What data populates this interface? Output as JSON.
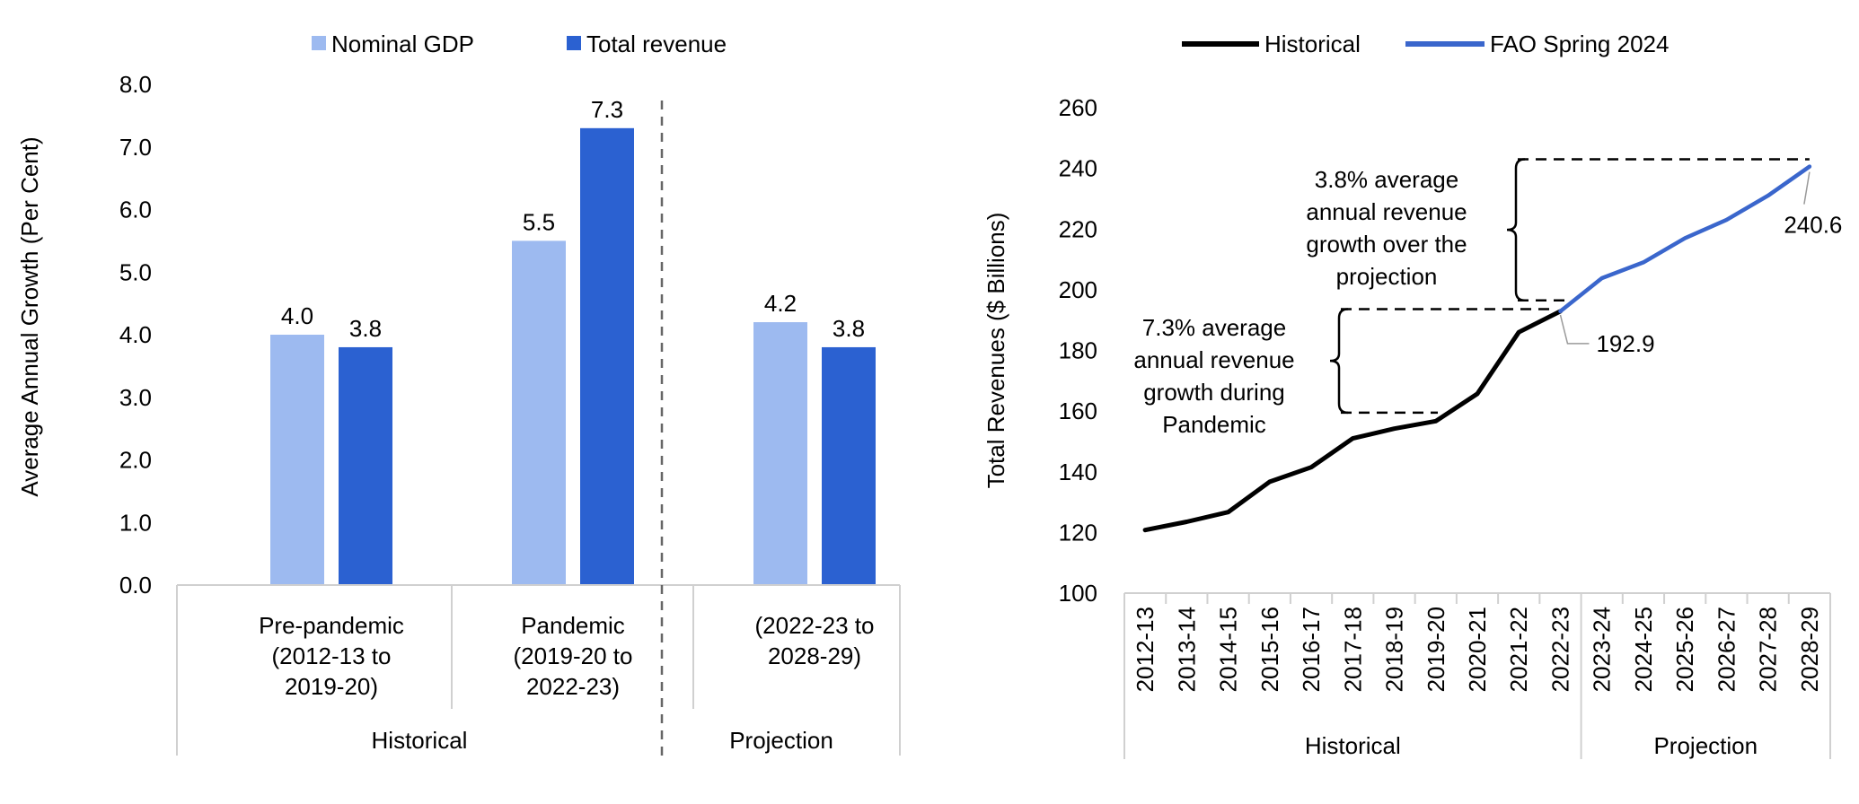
{
  "chart_data": [
    {
      "type": "bar",
      "title": "",
      "xlabel": "",
      "ylabel": "Average Annual Growth (Per Cent)",
      "ylim": [
        0,
        8
      ],
      "yticks": [
        "0.0",
        "1.0",
        "2.0",
        "3.0",
        "4.0",
        "5.0",
        "6.0",
        "7.0",
        "8.0"
      ],
      "legend_position": "top",
      "categories": [
        [
          "Pre-pandemic",
          "(2012-13 to",
          "2019-20)"
        ],
        [
          "Pandemic",
          "(2019-20 to",
          "2022-23)"
        ],
        [
          "(2022-23 to",
          "2028-29)"
        ]
      ],
      "groups": [
        "Historical",
        "Projection"
      ],
      "series": [
        {
          "name": "Nominal GDP",
          "color": "#9dbaf0",
          "values": [
            4.0,
            5.5,
            4.2
          ],
          "labels": [
            "4.0",
            "5.5",
            "4.2"
          ]
        },
        {
          "name": "Total revenue",
          "color": "#2b61d1",
          "values": [
            3.8,
            7.3,
            3.8
          ],
          "labels": [
            "3.8",
            "7.3",
            "3.8"
          ]
        }
      ],
      "grid": false
    },
    {
      "type": "line",
      "title": "",
      "xlabel": "",
      "ylabel": "Total Revenues ($ Billions)",
      "ylim": [
        100,
        260
      ],
      "yticks": [
        "100",
        "120",
        "140",
        "160",
        "180",
        "200",
        "220",
        "240",
        "260"
      ],
      "legend_position": "top",
      "x": [
        "2012-13",
        "2013-14",
        "2014-15",
        "2015-16",
        "2016-17",
        "2017-18",
        "2018-19",
        "2019-20",
        "2020-21",
        "2021-22",
        "2022-23",
        "2023-24",
        "2024-25",
        "2025-26",
        "2026-27",
        "2027-28",
        "2028-29"
      ],
      "groups": [
        "Historical",
        "Projection"
      ],
      "series": [
        {
          "name": "Historical",
          "color": "#000000",
          "values": [
            120.8,
            123.5,
            126.7,
            136.7,
            141.5,
            151.0,
            154.2,
            156.7,
            165.7,
            186.0,
            192.9,
            null,
            null,
            null,
            null,
            null,
            null
          ]
        },
        {
          "name": "FAO Spring 2024",
          "color": "#3a66cc",
          "values": [
            null,
            null,
            null,
            null,
            null,
            null,
            null,
            null,
            null,
            null,
            192.9,
            203.8,
            209.0,
            217.0,
            223.0,
            231.0,
            240.6
          ]
        }
      ],
      "data_labels": [
        "192.9",
        "240.6"
      ],
      "annotations": [
        {
          "lines": [
            "3.8% average",
            "annual revenue",
            "growth over the",
            "projection"
          ]
        },
        {
          "lines": [
            "7.3% average",
            "annual revenue",
            "growth during",
            "Pandemic"
          ]
        }
      ],
      "grid": false
    }
  ]
}
